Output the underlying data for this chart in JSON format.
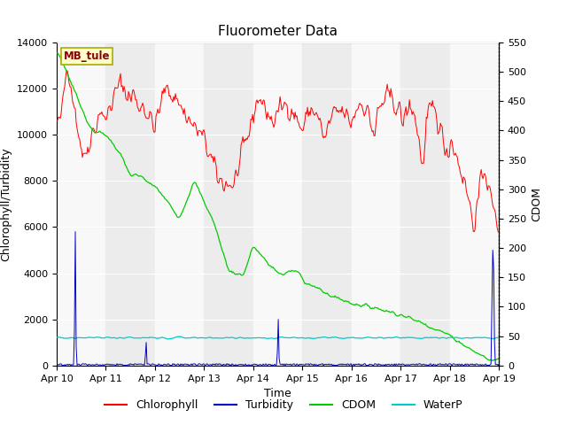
{
  "title": "Fluorometer Data",
  "xlabel": "Time",
  "ylabel_left": "Chlorophyll/Turbidity",
  "ylabel_right": "CDOM",
  "ylim_left": [
    0,
    14000
  ],
  "ylim_right": [
    0,
    550
  ],
  "xtick_labels": [
    "Apr 10",
    "Apr 11",
    "Apr 12",
    "Apr 13",
    "Apr 14",
    "Apr 15",
    "Apr 16",
    "Apr 17",
    "Apr 18",
    "Apr 19"
  ],
  "yticks_left": [
    0,
    2000,
    4000,
    6000,
    8000,
    10000,
    12000,
    14000
  ],
  "yticks_right": [
    0,
    50,
    100,
    150,
    200,
    250,
    300,
    350,
    400,
    450,
    500,
    550
  ],
  "station_label": "MB_tule",
  "colors": {
    "chlorophyll": "#ff0000",
    "turbidity": "#0000cc",
    "cdom": "#00cc00",
    "waterp": "#00cccc",
    "band_light": "#ececec",
    "band_white": "#f8f8f8"
  },
  "legend_entries": [
    "Chlorophyll",
    "Turbidity",
    "CDOM",
    "WaterP"
  ]
}
